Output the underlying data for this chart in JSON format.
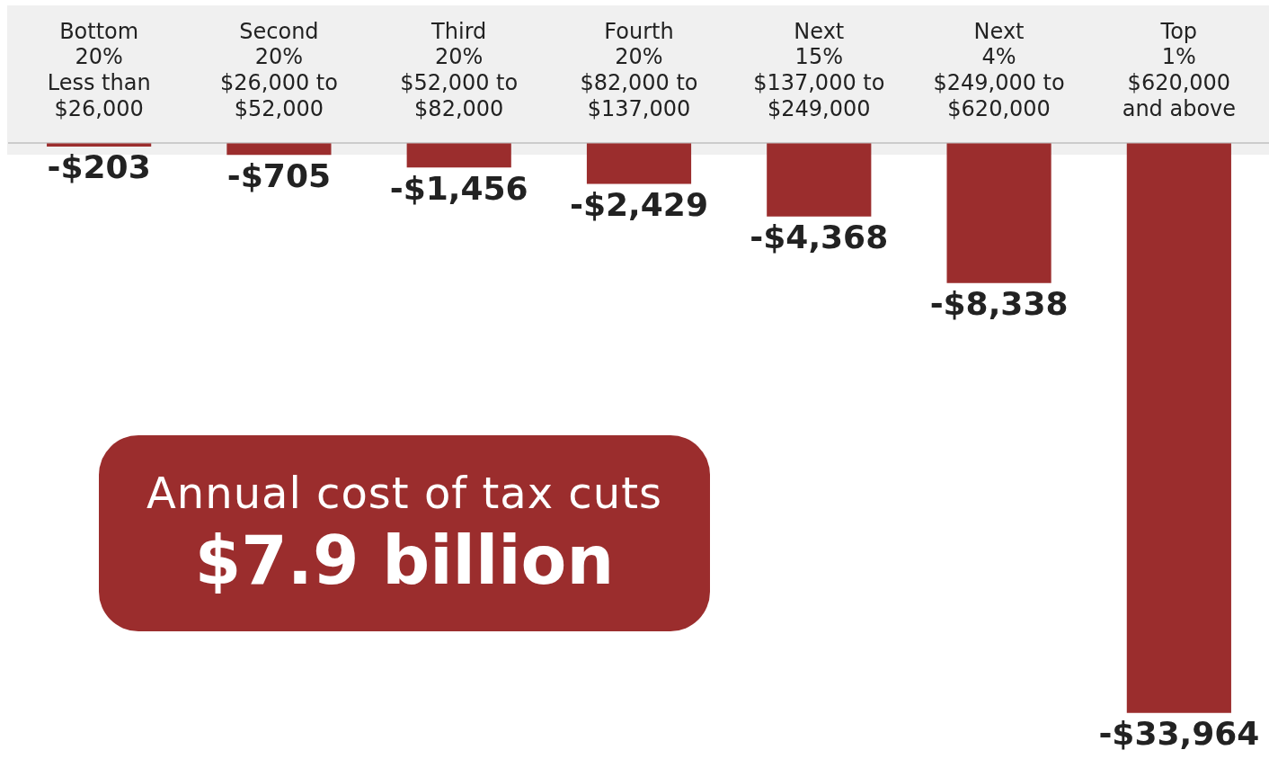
{
  "chart_data": {
    "type": "bar",
    "categories": [
      "Bottom\n20%\nLess than\n$26,000",
      "Second\n20%\n$26,000 to\n$52,000",
      "Third\n20%\n$52,000 to\n$82,000",
      "Fourth\n20%\n$82,000 to\n$137,000",
      "Next\n15%\n$137,000 to\n$249,000",
      "Next\n4%\n$249,000 to\n$620,000",
      "Top\n1%\n$620,000\nand above"
    ],
    "values": [
      -203,
      -705,
      -1456,
      -2429,
      -4368,
      -8338,
      -33964
    ],
    "value_labels": [
      "-$203",
      "-$705",
      "-$1,456",
      "-$2,429",
      "-$4,368",
      "-$8,338",
      "-$33,964"
    ],
    "color": "#9b2d2d",
    "annotations": [
      "Annual cost of tax cuts",
      "$7.9 billion"
    ],
    "grid": false,
    "legend": false
  }
}
